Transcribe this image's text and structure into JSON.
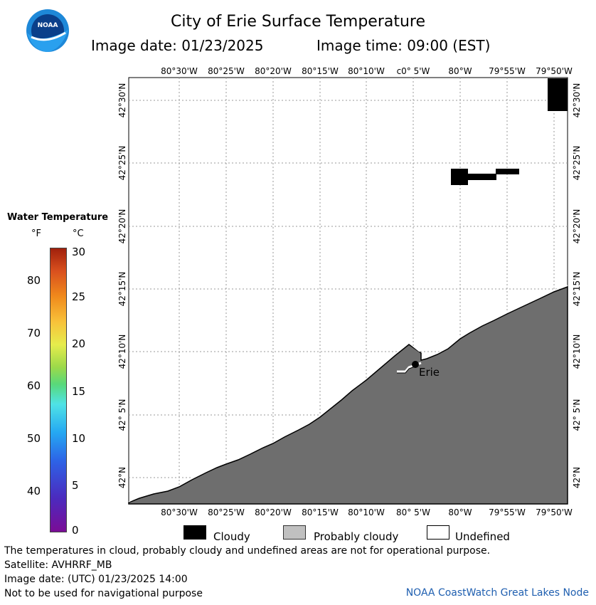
{
  "header": {
    "title": "City of Erie Surface Temperature",
    "image_date": "Image date: 01/23/2025",
    "image_time": "Image time: 09:00 (EST)",
    "logo_text": "NOAA"
  },
  "map": {
    "top_lon_ticks": [
      "80°30'W",
      "80°25'W",
      "80°20'W",
      "80°15'W",
      "80°10'W",
      "с0° 5'W",
      "80°W",
      "79°55'W",
      "79°50'W"
    ],
    "bottom_lon_ticks": [
      "80°30'W",
      "80°25'W",
      "80°20'W",
      "80°15'W",
      "80°10'W",
      "80° 5'W",
      "80°W",
      "79°55'W",
      "79°50'W"
    ],
    "lat_ticks": [
      "42°30'N",
      "42°25'N",
      "42°20'N",
      "42°15'N",
      "42°10'N",
      "42° 5'N",
      "42°N"
    ],
    "city_label": "Erie",
    "colors": {
      "land": "#6e6e6e",
      "cloud": "#000000",
      "water": "#ffffff",
      "grid": "#999999"
    }
  },
  "legend": {
    "title": "Water Temperature",
    "unit_f": "°F",
    "unit_c": "°C",
    "fahrenheit_labels": [
      "80",
      "70",
      "60",
      "50",
      "40"
    ],
    "celsius_labels": [
      "30",
      "25",
      "20",
      "15",
      "10",
      "5",
      "0"
    ]
  },
  "key": {
    "cloudy": "Cloudy",
    "probably_cloudy": "Probably cloudy",
    "undefined": "Undefined"
  },
  "footer": {
    "disclaimer": "The temperatures in cloud, probably cloudy and undefined areas are not for operational purpose.",
    "satellite": "Satellite: AVHRRF_MB",
    "utc_date": "Image date: (UTC) 01/23/2025  14:00",
    "navigation": "Not to be used for navigational purpose",
    "credit": "NOAA CoastWatch Great Lakes Node"
  }
}
